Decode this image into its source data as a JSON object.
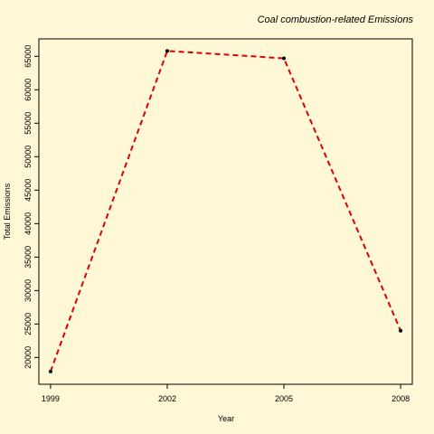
{
  "chart_data": {
    "type": "line",
    "title": "Coal combustion-related Emissions",
    "xlabel": "Year",
    "ylabel": "Total Emissions",
    "x": [
      1999,
      2002,
      2005,
      2008
    ],
    "y": [
      17900,
      65800,
      64700,
      24000
    ],
    "xticks": [
      1999,
      2002,
      2005,
      2008
    ],
    "yticks": [
      20000,
      25000,
      30000,
      35000,
      40000,
      45000,
      50000,
      55000,
      60000,
      65000
    ],
    "xlim": [
      1998.7,
      2008.3
    ],
    "ylim": [
      16000,
      67600
    ],
    "line_color": "#e00000",
    "line_style": "dashed",
    "point_color": "#000000",
    "background": "#fff8d6",
    "grid": false
  }
}
